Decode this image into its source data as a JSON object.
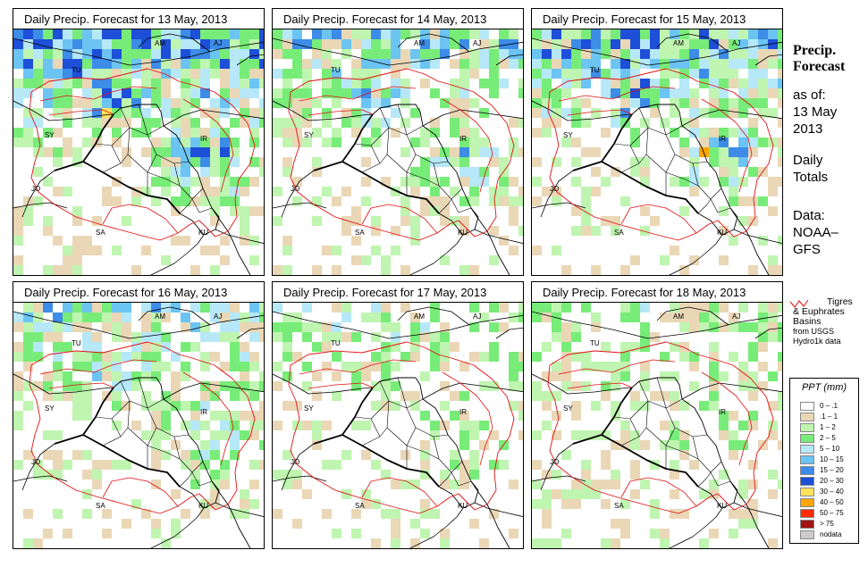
{
  "panels": [
    {
      "title": "Daily Precip. Forecast for  13 May, 2013",
      "seed": 13,
      "wet": 1.0,
      "heavy": true
    },
    {
      "title": "Daily Precip. Forecast for  14 May, 2013",
      "seed": 14,
      "wet": 0.65,
      "heavy": false
    },
    {
      "title": "Daily Precip. Forecast for  15 May, 2013",
      "seed": 15,
      "wet": 0.85,
      "heavy": true
    },
    {
      "title": "Daily Precip. Forecast for  16 May, 2013",
      "seed": 16,
      "wet": 0.6,
      "heavy": false
    },
    {
      "title": "Daily Precip. Forecast for  17 May, 2013",
      "seed": 17,
      "wet": 0.35,
      "heavy": false
    },
    {
      "title": "Daily Precip. Forecast for  18 May, 2013",
      "seed": 18,
      "wet": 0.3,
      "heavy": false
    }
  ],
  "country_labels": [
    "AM",
    "AJ",
    "TU",
    "SY",
    "IR",
    "JO",
    "SA",
    "KU"
  ],
  "side": {
    "title_line1": "Precip.",
    "title_line2": "Forecast",
    "asof": "as of:",
    "date_line1": "13 May",
    "date_line2": "2013",
    "daily_line1": "Daily",
    "daily_line2": "Totals",
    "data_line1": "Data:",
    "data_line2": "NOAA–",
    "data_line3": "GFS"
  },
  "basin_legend": {
    "line1": "Tigres",
    "line2": "& Euphrates",
    "line3": "Basins",
    "line4": "from USGS",
    "line5": "Hydro1k data",
    "line_color": "#e01010"
  },
  "ppt_legend": {
    "title": "PPT (mm)",
    "items": [
      {
        "label": "0 – .1",
        "color": "#ffffff"
      },
      {
        "label": ".1 – 1",
        "color": "#ead7b6"
      },
      {
        "label": "1 – 2",
        "color": "#bff5b0"
      },
      {
        "label": "2 – 5",
        "color": "#78ec78"
      },
      {
        "label": "5 – 10",
        "color": "#b6e8f8"
      },
      {
        "label": "10 – 15",
        "color": "#6cc4f2"
      },
      {
        "label": "15 – 20",
        "color": "#3c8ce8"
      },
      {
        "label": "20 – 30",
        "color": "#1e4fd8"
      },
      {
        "label": "30 – 40",
        "color": "#ffe15a"
      },
      {
        "label": "40 – 50",
        "color": "#ffa500"
      },
      {
        "label": "50 – 75",
        "color": "#ff2a00"
      },
      {
        "label": "> 75",
        "color": "#a01414"
      },
      {
        "label": "nodata",
        "color": "#cccccc"
      }
    ]
  }
}
